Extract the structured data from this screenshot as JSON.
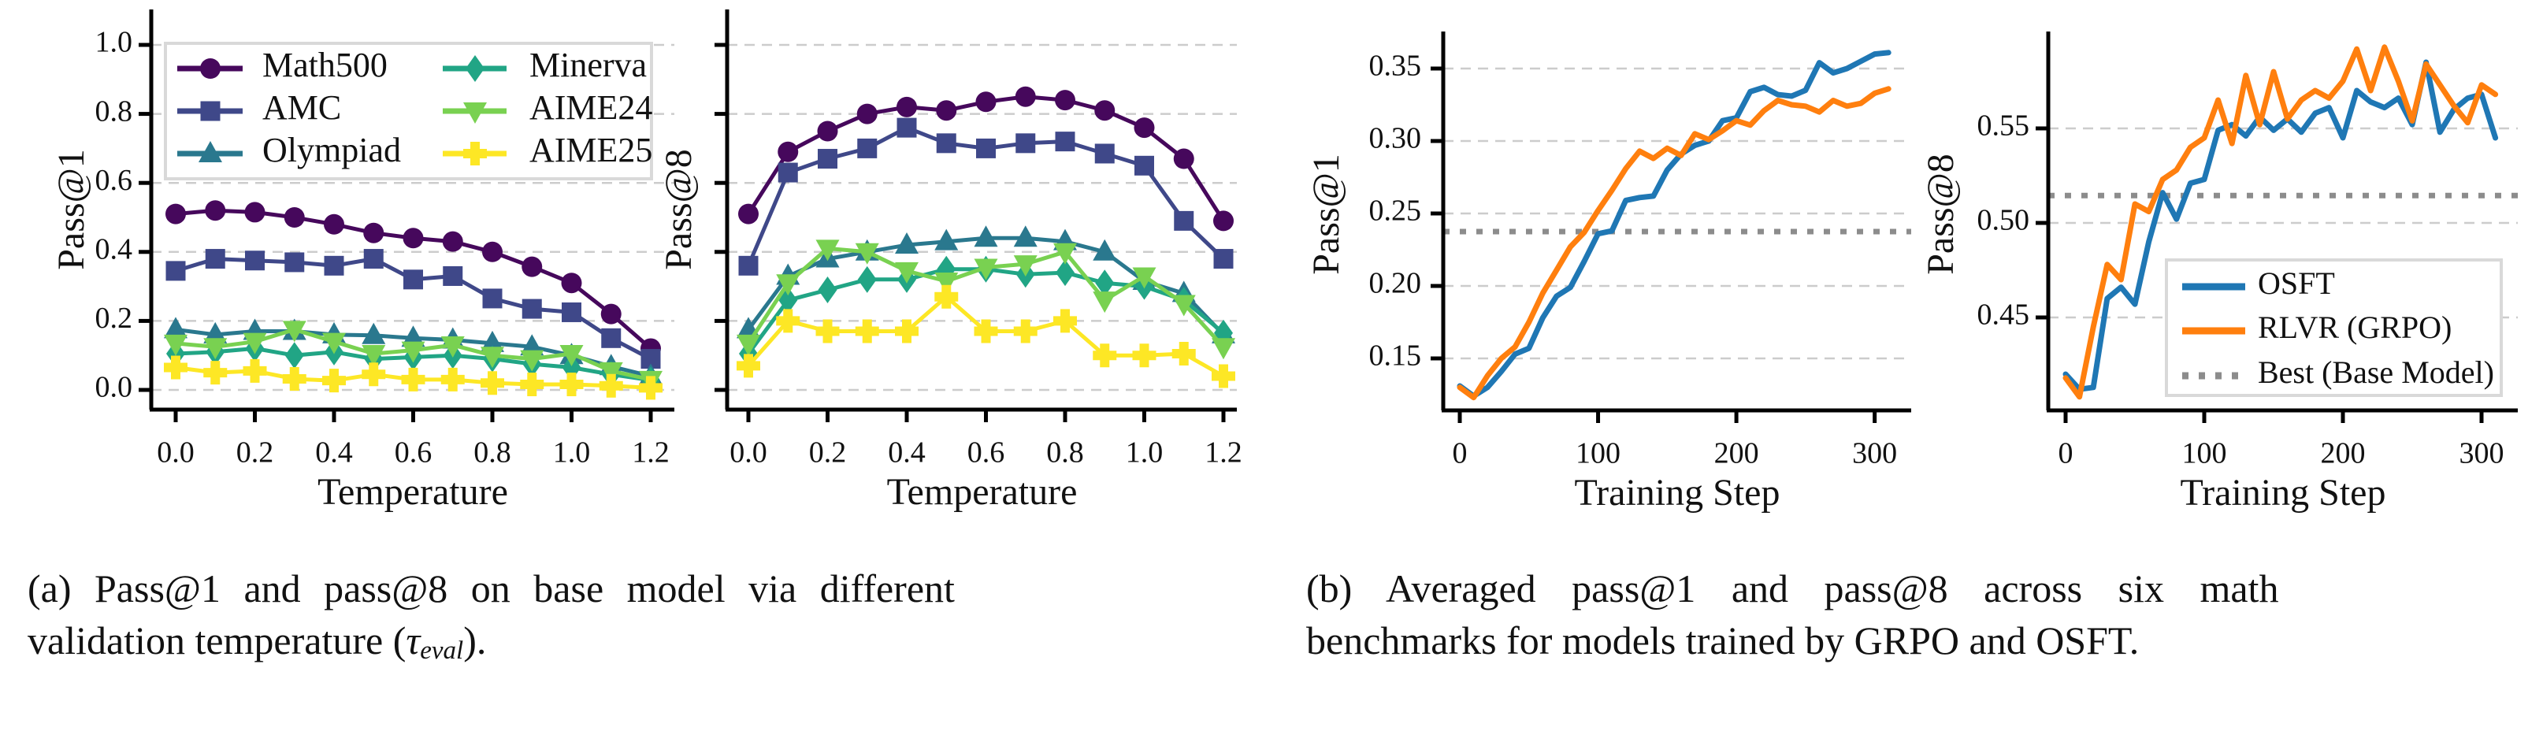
{
  "captions": {
    "a": {
      "line1": "(a) Pass@1 and pass@8 on base model via different",
      "line2_pre": "validation temperature (",
      "tau": "τ",
      "tau_sub": "eval",
      "line2_post": ")."
    },
    "b": {
      "line1": "(b) Averaged pass@1 and pass@8 across six math",
      "line2": "benchmarks for models trained by GRPO and OSFT."
    }
  },
  "colors": {
    "math500": "#46085c",
    "amc": "#3f4889",
    "olympiad": "#2a788e",
    "minerva": "#21a585",
    "aime24": "#79d151",
    "aime25": "#fde725",
    "osft": "#1f77b4",
    "rlvr": "#ff7f0e",
    "best_line": "#8c8c8c",
    "grid": "#cccccc",
    "spine": "#000000",
    "legend_border": "#d9d9d9",
    "text": "#111111"
  },
  "chart_data": [
    {
      "id": "pass1-temperature",
      "type": "line",
      "xlabel": "Temperature",
      "ylabel": "Pass@1",
      "xlim": [
        -0.062,
        1.266
      ],
      "ylim": [
        -0.057,
        1.103
      ],
      "grid": "horizontal-dashed",
      "xticks": [
        {
          "v": 0.0,
          "label": "0.0"
        },
        {
          "v": 0.2,
          "label": "0.2"
        },
        {
          "v": 0.4,
          "label": "0.4"
        },
        {
          "v": 0.6,
          "label": "0.6"
        },
        {
          "v": 0.8,
          "label": "0.8"
        },
        {
          "v": 1.0,
          "label": "1.0"
        },
        {
          "v": 1.2,
          "label": "1.2"
        }
      ],
      "yticks": [
        {
          "v": 0.0,
          "label": "0.0"
        },
        {
          "v": 0.2,
          "label": "0.2"
        },
        {
          "v": 0.4,
          "label": "0.4"
        },
        {
          "v": 0.6,
          "label": "0.6"
        },
        {
          "v": 0.8,
          "label": "0.8"
        },
        {
          "v": 1.0,
          "label": "1.0"
        }
      ],
      "x": [
        0.0,
        0.1,
        0.2,
        0.3,
        0.4,
        0.5,
        0.6,
        0.7,
        0.8,
        0.9,
        1.0,
        1.1,
        1.2
      ],
      "legend": {
        "show": true,
        "position": "upper-left",
        "columns": 2
      },
      "series": [
        {
          "name": "Math500",
          "color": "#46085c",
          "marker": "circle",
          "values": [
            0.51,
            0.52,
            0.515,
            0.5,
            0.48,
            0.455,
            0.44,
            0.43,
            0.4,
            0.357,
            0.31,
            0.22,
            0.12
          ]
        },
        {
          "name": "AMC",
          "color": "#3f4889",
          "marker": "square",
          "values": [
            0.345,
            0.38,
            0.375,
            0.37,
            0.36,
            0.38,
            0.32,
            0.33,
            0.265,
            0.235,
            0.225,
            0.15,
            0.09
          ]
        },
        {
          "name": "Olympiad",
          "color": "#2a788e",
          "marker": "triangle-up",
          "values": [
            0.175,
            0.16,
            0.17,
            0.17,
            0.16,
            0.158,
            0.15,
            0.145,
            0.135,
            0.125,
            0.1,
            0.068,
            0.04
          ]
        },
        {
          "name": "Minerva",
          "color": "#21a585",
          "marker": "diamond",
          "values": [
            0.105,
            0.11,
            0.12,
            0.1,
            0.11,
            0.09,
            0.095,
            0.1,
            0.09,
            0.075,
            0.065,
            0.045,
            0.028
          ]
        },
        {
          "name": "AIME24",
          "color": "#79d151",
          "marker": "triangle-down",
          "values": [
            0.135,
            0.125,
            0.14,
            0.175,
            0.14,
            0.105,
            0.115,
            0.13,
            0.1,
            0.09,
            0.105,
            0.055,
            0.03
          ]
        },
        {
          "name": "AIME25",
          "color": "#fde725",
          "marker": "plus",
          "values": [
            0.065,
            0.05,
            0.055,
            0.032,
            0.027,
            0.045,
            0.03,
            0.03,
            0.02,
            0.016,
            0.016,
            0.012,
            0.006
          ]
        }
      ]
    },
    {
      "id": "pass8-temperature",
      "type": "line",
      "xlabel": "Temperature",
      "ylabel": "Pass@8",
      "xlim": [
        -0.065,
        1.27
      ],
      "ylim": [
        -0.057,
        1.103
      ],
      "grid": "horizontal-dashed",
      "show_ytick_labels": false,
      "xticks": [
        {
          "v": 0.0,
          "label": "0.0"
        },
        {
          "v": 0.2,
          "label": "0.2"
        },
        {
          "v": 0.4,
          "label": "0.4"
        },
        {
          "v": 0.6,
          "label": "0.6"
        },
        {
          "v": 0.8,
          "label": "0.8"
        },
        {
          "v": 1.0,
          "label": "1.0"
        },
        {
          "v": 1.2,
          "label": "1.2"
        }
      ],
      "yticks": [
        {
          "v": 0.0,
          "label": ""
        },
        {
          "v": 0.2,
          "label": ""
        },
        {
          "v": 0.4,
          "label": ""
        },
        {
          "v": 0.6,
          "label": ""
        },
        {
          "v": 0.8,
          "label": ""
        },
        {
          "v": 1.0,
          "label": ""
        }
      ],
      "x": [
        0.0,
        0.1,
        0.2,
        0.3,
        0.4,
        0.5,
        0.6,
        0.7,
        0.8,
        0.9,
        1.0,
        1.1,
        1.2
      ],
      "legend": {
        "show": false
      },
      "series": [
        {
          "name": "Math500",
          "color": "#46085c",
          "marker": "circle",
          "values": [
            0.51,
            0.69,
            0.75,
            0.8,
            0.82,
            0.81,
            0.835,
            0.85,
            0.84,
            0.81,
            0.76,
            0.67,
            0.49
          ]
        },
        {
          "name": "AMC",
          "color": "#3f4889",
          "marker": "square",
          "values": [
            0.36,
            0.63,
            0.67,
            0.7,
            0.76,
            0.715,
            0.7,
            0.715,
            0.72,
            0.685,
            0.65,
            0.49,
            0.38
          ]
        },
        {
          "name": "Olympiad",
          "color": "#2a788e",
          "marker": "triangle-up",
          "values": [
            0.175,
            0.33,
            0.38,
            0.4,
            0.42,
            0.43,
            0.44,
            0.44,
            0.43,
            0.4,
            0.315,
            0.28,
            0.16
          ]
        },
        {
          "name": "Minerva",
          "color": "#21a585",
          "marker": "diamond",
          "values": [
            0.105,
            0.26,
            0.29,
            0.32,
            0.32,
            0.35,
            0.35,
            0.335,
            0.34,
            0.31,
            0.3,
            0.26,
            0.165
          ]
        },
        {
          "name": "AIME24",
          "color": "#79d151",
          "marker": "triangle-down",
          "values": [
            0.135,
            0.31,
            0.41,
            0.4,
            0.345,
            0.315,
            0.355,
            0.365,
            0.4,
            0.26,
            0.33,
            0.25,
            0.125
          ]
        },
        {
          "name": "AIME25",
          "color": "#fde725",
          "marker": "plus",
          "values": [
            0.07,
            0.2,
            0.17,
            0.17,
            0.17,
            0.27,
            0.17,
            0.17,
            0.2,
            0.1,
            0.1,
            0.105,
            0.04
          ]
        }
      ]
    },
    {
      "id": "pass1-training-step",
      "type": "line",
      "xlabel": "Training Step",
      "ylabel": "Pass@1",
      "xlim": [
        -12,
        326
      ],
      "ylim": [
        0.114,
        0.3755
      ],
      "grid": "horizontal-dashed",
      "xticks": [
        {
          "v": 0,
          "label": "0"
        },
        {
          "v": 100,
          "label": "100"
        },
        {
          "v": 200,
          "label": "200"
        },
        {
          "v": 300,
          "label": "300"
        }
      ],
      "yticks": [
        {
          "v": 0.15,
          "label": "0.15"
        },
        {
          "v": 0.2,
          "label": "0.20"
        },
        {
          "v": 0.25,
          "label": "0.25"
        },
        {
          "v": 0.3,
          "label": "0.30"
        },
        {
          "v": 0.35,
          "label": "0.35"
        }
      ],
      "x": [
        0,
        10,
        20,
        30,
        40,
        50,
        60,
        70,
        80,
        90,
        100,
        110,
        120,
        130,
        140,
        150,
        160,
        170,
        180,
        190,
        200,
        210,
        220,
        230,
        240,
        250,
        260,
        270,
        280,
        290,
        300,
        310
      ],
      "best_line": {
        "value": 0.2375,
        "label": "Best (Base Model)",
        "color": "#8c8c8c"
      },
      "legend": {
        "show": false
      },
      "series": [
        {
          "name": "OSFT",
          "color": "#1f77b4",
          "marker": null,
          "values": [
            0.131,
            0.124,
            0.13,
            0.141,
            0.153,
            0.157,
            0.178,
            0.193,
            0.199,
            0.217,
            0.236,
            0.238,
            0.259,
            0.261,
            0.262,
            0.28,
            0.291,
            0.297,
            0.3,
            0.314,
            0.316,
            0.334,
            0.337,
            0.332,
            0.331,
            0.335,
            0.354,
            0.347,
            0.35,
            0.355,
            0.36,
            0.361
          ]
        },
        {
          "name": "RLVR (GRPO)",
          "color": "#ff7f0e",
          "marker": null,
          "values": [
            0.13,
            0.123,
            0.138,
            0.15,
            0.158,
            0.175,
            0.195,
            0.211,
            0.227,
            0.237,
            0.252,
            0.266,
            0.281,
            0.293,
            0.288,
            0.295,
            0.29,
            0.305,
            0.301,
            0.307,
            0.314,
            0.311,
            0.321,
            0.328,
            0.325,
            0.324,
            0.32,
            0.328,
            0.324,
            0.326,
            0.333,
            0.336
          ]
        }
      ]
    },
    {
      "id": "pass8-training-step",
      "type": "line",
      "xlabel": "Training Step",
      "ylabel": "Pass@8",
      "xlim": [
        -12,
        326
      ],
      "ylim": [
        0.4008,
        0.6013
      ],
      "grid": "horizontal-dashed",
      "xticks": [
        {
          "v": 0,
          "label": "0"
        },
        {
          "v": 100,
          "label": "100"
        },
        {
          "v": 200,
          "label": "200"
        },
        {
          "v": 300,
          "label": "300"
        }
      ],
      "yticks": [
        {
          "v": 0.45,
          "label": "0.45"
        },
        {
          "v": 0.5,
          "label": "0.50"
        },
        {
          "v": 0.55,
          "label": "0.55"
        }
      ],
      "x": [
        0,
        10,
        20,
        30,
        40,
        50,
        60,
        70,
        80,
        90,
        100,
        110,
        120,
        130,
        140,
        150,
        160,
        170,
        180,
        190,
        200,
        210,
        220,
        230,
        240,
        250,
        260,
        270,
        280,
        290,
        300,
        310
      ],
      "best_line": {
        "value": 0.5145,
        "label": "Best (Base Model)",
        "color": "#8c8c8c"
      },
      "legend": {
        "show": true,
        "position": "lower-right",
        "columns": 1
      },
      "series": [
        {
          "name": "OSFT",
          "color": "#1f77b4",
          "marker": null,
          "values": [
            0.42,
            0.412,
            0.413,
            0.46,
            0.466,
            0.457,
            0.49,
            0.516,
            0.502,
            0.521,
            0.523,
            0.549,
            0.552,
            0.546,
            0.556,
            0.549,
            0.555,
            0.548,
            0.558,
            0.561,
            0.545,
            0.57,
            0.564,
            0.561,
            0.566,
            0.552,
            0.585,
            0.548,
            0.56,
            0.566,
            0.568,
            0.545
          ]
        },
        {
          "name": "RLVR (GRPO)",
          "color": "#ff7f0e",
          "marker": null,
          "values": [
            0.418,
            0.408,
            0.445,
            0.478,
            0.47,
            0.51,
            0.506,
            0.523,
            0.528,
            0.54,
            0.545,
            0.565,
            0.542,
            0.578,
            0.552,
            0.58,
            0.555,
            0.565,
            0.57,
            0.566,
            0.575,
            0.592,
            0.57,
            0.593,
            0.575,
            0.554,
            0.584,
            0.573,
            0.562,
            0.553,
            0.573,
            0.568
          ]
        }
      ]
    }
  ]
}
